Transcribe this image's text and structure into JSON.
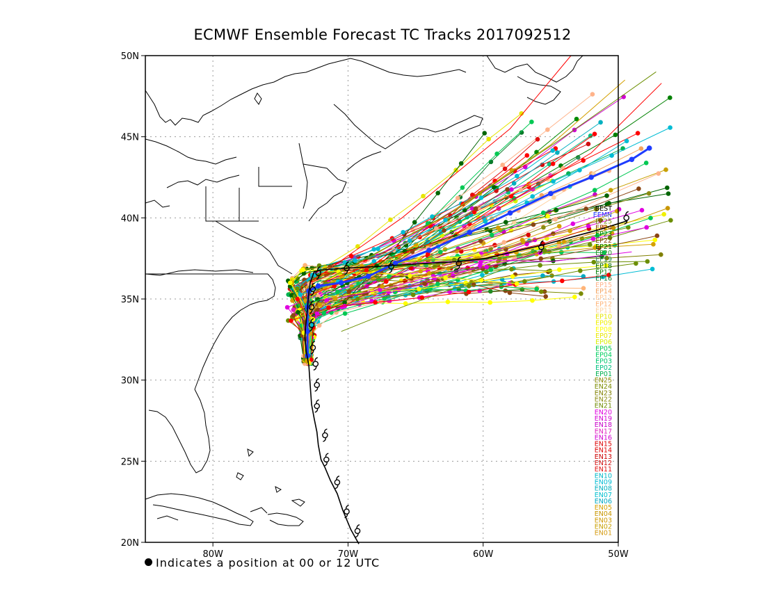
{
  "title": "ECMWF Ensemble Forecast TC Tracks 2017092512",
  "footnote": "Indicates a position at 00 or 12 UTC",
  "map": {
    "lon_range": [
      -85,
      -50
    ],
    "lat_range": [
      20,
      50
    ],
    "x_ticks": [
      {
        "lon": -80,
        "label": "80W"
      },
      {
        "lon": -70,
        "label": "70W"
      },
      {
        "lon": -60,
        "label": "60W"
      },
      {
        "lon": -50,
        "label": "50W"
      }
    ],
    "y_ticks": [
      {
        "lat": 50,
        "label": "50N"
      },
      {
        "lat": 45,
        "label": "45N"
      },
      {
        "lat": 40,
        "label": "40N"
      },
      {
        "lat": 35,
        "label": "35N"
      },
      {
        "lat": 30,
        "label": "30N"
      },
      {
        "lat": 25,
        "label": "25N"
      },
      {
        "lat": 20,
        "label": "20N"
      }
    ],
    "grid": "dotted"
  },
  "legend": [
    {
      "label": "BEST",
      "color": "#000000"
    },
    {
      "label": "EEMN",
      "color": "#1e3cff"
    },
    {
      "label": "EP25",
      "color": "#6b8e00"
    },
    {
      "label": "EP24",
      "color": "#8b4500"
    },
    {
      "label": "EP23",
      "color": "#008b00"
    },
    {
      "label": "EP22",
      "color": "#8b4513"
    },
    {
      "label": "EP21",
      "color": "#006400"
    },
    {
      "label": "EP20",
      "color": "#228b22"
    },
    {
      "label": "EP19",
      "color": "#2e8b57"
    },
    {
      "label": "EP18",
      "color": "#006400"
    },
    {
      "label": "EP17",
      "color": "#008000"
    },
    {
      "label": "EP16",
      "color": "#0a7a2a"
    },
    {
      "label": "EP15",
      "color": "#ffb38a"
    },
    {
      "label": "EP14",
      "color": "#f4a460"
    },
    {
      "label": "EP13",
      "color": "#ffc896"
    },
    {
      "label": "EP12",
      "color": "#ffb478"
    },
    {
      "label": "EP11",
      "color": "#ffd2a0"
    },
    {
      "label": "EP10",
      "color": "#e6e600"
    },
    {
      "label": "EP09",
      "color": "#f0f000"
    },
    {
      "label": "EP08",
      "color": "#ffff00"
    },
    {
      "label": "EP07",
      "color": "#e8e800"
    },
    {
      "label": "EP06",
      "color": "#d8f000"
    },
    {
      "label": "EP05",
      "color": "#00c853"
    },
    {
      "label": "EP04",
      "color": "#00d060"
    },
    {
      "label": "EP03",
      "color": "#00c870"
    },
    {
      "label": "EP02",
      "color": "#00c080"
    },
    {
      "label": "EP01",
      "color": "#00b050"
    },
    {
      "label": "EN25",
      "color": "#8b8b00"
    },
    {
      "label": "EN24",
      "color": "#7a8b00"
    },
    {
      "label": "EN23",
      "color": "#808000"
    },
    {
      "label": "EN22",
      "color": "#8b8b10"
    },
    {
      "label": "EN21",
      "color": "#6e8b00"
    },
    {
      "label": "EN20",
      "color": "#e000e0"
    },
    {
      "label": "EN19",
      "color": "#d400d4"
    },
    {
      "label": "EN18",
      "color": "#c800c8"
    },
    {
      "label": "EN17",
      "color": "#e020c0"
    },
    {
      "label": "EN16",
      "color": "#d000d0"
    },
    {
      "label": "EN15",
      "color": "#dd0000"
    },
    {
      "label": "EN14",
      "color": "#e00000"
    },
    {
      "label": "EN13",
      "color": "#cc0000"
    },
    {
      "label": "EN12",
      "color": "#d01010"
    },
    {
      "label": "EN11",
      "color": "#e01010"
    },
    {
      "label": "EN10",
      "color": "#00b8c8"
    },
    {
      "label": "EN09",
      "color": "#00bcd4"
    },
    {
      "label": "EN08",
      "color": "#00b0c0"
    },
    {
      "label": "EN07",
      "color": "#00c0d0"
    },
    {
      "label": "EN06",
      "color": "#00a8c0"
    },
    {
      "label": "EN05",
      "color": "#d4a000"
    },
    {
      "label": "EN04",
      "color": "#c89600"
    },
    {
      "label": "EN03",
      "color": "#d09a00"
    },
    {
      "label": "EN02",
      "color": "#c8a000"
    },
    {
      "label": "EN01",
      "color": "#d49a10"
    }
  ],
  "best_track": [
    [
      -69.2,
      19.9
    ],
    [
      -69.8,
      20.8
    ],
    [
      -70.4,
      22.0
    ],
    [
      -70.8,
      23.0
    ],
    [
      -71.3,
      23.8
    ],
    [
      -71.7,
      24.6
    ],
    [
      -72.0,
      25.1
    ],
    [
      -72.2,
      26.0
    ],
    [
      -72.3,
      26.8
    ],
    [
      -72.5,
      27.6
    ],
    [
      -72.7,
      28.5
    ],
    [
      -72.8,
      29.7
    ],
    [
      -72.9,
      30.9
    ],
    [
      -73.1,
      31.8
    ],
    [
      -73.2,
      32.7
    ],
    [
      -73.1,
      33.6
    ],
    [
      -73.0,
      34.4
    ],
    [
      -72.9,
      35.4
    ],
    [
      -72.8,
      36.0
    ],
    [
      -72.5,
      36.7
    ],
    [
      -71.7,
      36.8
    ],
    [
      -70.1,
      36.9
    ],
    [
      -68.0,
      37.0
    ],
    [
      -66.0,
      37.1
    ],
    [
      -64.0,
      37.2
    ],
    [
      -61.9,
      37.3
    ],
    [
      -59.8,
      37.5
    ],
    [
      -57.8,
      37.9
    ],
    [
      -55.7,
      38.3
    ],
    [
      -53.5,
      38.8
    ],
    [
      -51.3,
      39.3
    ],
    [
      -49.4,
      39.8
    ]
  ],
  "best_track_markers": [
    [
      -69.3,
      20.7
    ],
    [
      -70.1,
      21.9
    ],
    [
      -70.8,
      23.7
    ],
    [
      -71.6,
      25.1
    ],
    [
      -71.7,
      26.6
    ],
    [
      -72.3,
      28.4
    ],
    [
      -72.3,
      29.7
    ],
    [
      -72.4,
      31.0
    ],
    [
      -72.6,
      32.0
    ],
    [
      -72.7,
      33.4
    ],
    [
      -72.7,
      34.5
    ],
    [
      -72.6,
      35.6
    ],
    [
      -72.2,
      36.6
    ],
    [
      -70.1,
      36.9
    ],
    [
      -66.8,
      37.0
    ],
    [
      -61.8,
      37.2
    ],
    [
      -55.7,
      38.2
    ],
    [
      -49.4,
      40.0
    ]
  ],
  "ensemble_mean_track": [
    [
      -73.0,
      31.5
    ],
    [
      -73.0,
      33.0
    ],
    [
      -73.0,
      34.5
    ],
    [
      -72.9,
      35.5
    ],
    [
      -72.2,
      35.8
    ],
    [
      -70.5,
      36.0
    ],
    [
      -68.5,
      36.4
    ],
    [
      -66.5,
      37.2
    ],
    [
      -64.0,
      38.0
    ],
    [
      -61.0,
      39.1
    ],
    [
      -58.0,
      40.3
    ],
    [
      -55.0,
      41.5
    ],
    [
      -52.0,
      42.5
    ],
    [
      -49.0,
      43.6
    ],
    [
      -47.7,
      44.3
    ]
  ]
}
